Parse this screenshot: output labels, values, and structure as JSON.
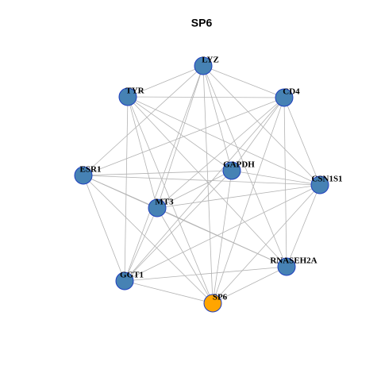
{
  "title": "SP6",
  "nodes": [
    {
      "label": "LYZ",
      "color": "#4682b4"
    },
    {
      "label": "TYR",
      "color": "#4682b4"
    },
    {
      "label": "CD4",
      "color": "#4682b4"
    },
    {
      "label": "ESR1",
      "color": "#4682b4"
    },
    {
      "label": "GAPDH",
      "color": "#4682b4"
    },
    {
      "label": "CSN1S1",
      "color": "#4682b4"
    },
    {
      "label": "MT3",
      "color": "#4682b4"
    },
    {
      "label": "RNASEH2A",
      "color": "#4682b4"
    },
    {
      "label": "GGT1",
      "color": "#4682b4"
    },
    {
      "label": "SP6",
      "color": "#ffa500"
    }
  ],
  "edges": [
    [
      0,
      1
    ],
    [
      0,
      2
    ],
    [
      0,
      3
    ],
    [
      0,
      6
    ],
    [
      0,
      8
    ],
    [
      0,
      9
    ],
    [
      0,
      7
    ],
    [
      0,
      5
    ],
    [
      0,
      4
    ],
    [
      1,
      2
    ],
    [
      1,
      8
    ],
    [
      1,
      6
    ],
    [
      1,
      9
    ],
    [
      1,
      4
    ],
    [
      1,
      5
    ],
    [
      1,
      7
    ],
    [
      2,
      4
    ],
    [
      2,
      5
    ],
    [
      2,
      6
    ],
    [
      2,
      8
    ],
    [
      2,
      9
    ],
    [
      2,
      7
    ],
    [
      2,
      3
    ],
    [
      3,
      4
    ],
    [
      3,
      5
    ],
    [
      3,
      6
    ],
    [
      3,
      8
    ],
    [
      3,
      9
    ],
    [
      3,
      7
    ],
    [
      4,
      6
    ],
    [
      4,
      8
    ],
    [
      4,
      9
    ],
    [
      4,
      5
    ],
    [
      5,
      6
    ],
    [
      5,
      7
    ],
    [
      5,
      9
    ],
    [
      5,
      8
    ],
    [
      6,
      7
    ],
    [
      6,
      8
    ],
    [
      6,
      9
    ],
    [
      7,
      8
    ],
    [
      7,
      9
    ],
    [
      8,
      9
    ]
  ]
}
